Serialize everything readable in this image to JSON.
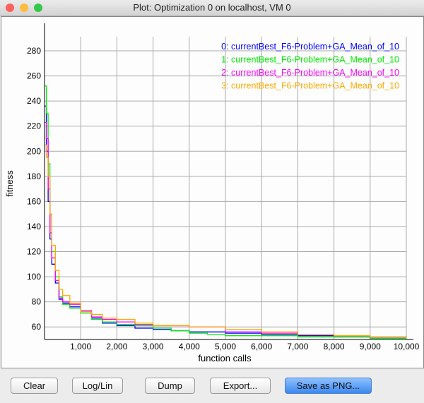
{
  "window": {
    "title": "Plot: Optimization 0  on localhost, VM 0"
  },
  "buttons": {
    "clear": "Clear",
    "loglin": "Log/Lin",
    "dump": "Dump",
    "export": "Export...",
    "save_png": "Save as PNG..."
  },
  "chart_data": {
    "type": "line",
    "xlabel": "function calls",
    "ylabel": "fitness",
    "xlim": [
      0,
      10000
    ],
    "ylim": [
      50,
      298
    ],
    "xticks": [
      "1,000",
      "2,000",
      "3,000",
      "4,000",
      "5,000",
      "6,000",
      "7,000",
      "8,000",
      "9,000",
      "10,000"
    ],
    "yticks": [
      "60",
      "80",
      "100",
      "120",
      "140",
      "160",
      "180",
      "200",
      "220",
      "240",
      "260",
      "280"
    ],
    "grid": true,
    "legend_position": "top-right",
    "series": [
      {
        "name": "0: currentBest_F6-Problem+GA_Mean_of_10",
        "color": "#0000ff",
        "x": [
          0,
          50,
          100,
          150,
          200,
          300,
          400,
          500,
          700,
          1000,
          1300,
          1600,
          2000,
          2500,
          3000,
          3500,
          4000,
          5000,
          6000,
          7000,
          8000,
          9000,
          10000
        ],
        "y": [
          236,
          200,
          160,
          130,
          110,
          95,
          82,
          79,
          76,
          72,
          67,
          63,
          61,
          59,
          58,
          57,
          56,
          55,
          54,
          53,
          52,
          51,
          51
        ]
      },
      {
        "name": "1: currentBest_F6-Problem+GA_Mean_of_10",
        "color": "#00ee00",
        "x": [
          0,
          50,
          100,
          150,
          200,
          300,
          400,
          500,
          700,
          1000,
          1300,
          1600,
          2000,
          2500,
          3000,
          3500,
          4000,
          4500,
          5000,
          6000,
          7000,
          8000,
          9000,
          10000
        ],
        "y": [
          252,
          230,
          190,
          150,
          120,
          100,
          84,
          78,
          75,
          71,
          66,
          64,
          62,
          61,
          59,
          57,
          55,
          54,
          53,
          53,
          52,
          52,
          51,
          51
        ]
      },
      {
        "name": "2: currentBest_F6-Problem+GA_Mean_of_10",
        "color": "#ff00ff",
        "x": [
          0,
          50,
          100,
          150,
          200,
          300,
          400,
          500,
          700,
          1000,
          1300,
          1600,
          2000,
          2500,
          3000,
          3500,
          4000,
          5000,
          6000,
          7000,
          8000,
          9000,
          10000
        ],
        "y": [
          223,
          210,
          170,
          135,
          115,
          97,
          83,
          80,
          78,
          73,
          68,
          66,
          64,
          62,
          61,
          61,
          60,
          56,
          55,
          54,
          53,
          52,
          52
        ]
      },
      {
        "name": "3: currentBest_F6-Problem+GA_Mean_of_10",
        "color": "#ffaa00",
        "x": [
          0,
          50,
          100,
          150,
          200,
          300,
          400,
          500,
          700,
          1000,
          1300,
          1600,
          2000,
          2500,
          3000,
          4000,
          5000,
          6000,
          7000,
          8000,
          9000,
          10000
        ],
        "y": [
          205,
          195,
          180,
          150,
          125,
          105,
          90,
          85,
          79,
          72,
          70,
          67,
          66,
          63,
          61,
          60,
          58,
          56,
          54,
          53,
          52,
          51
        ]
      }
    ]
  }
}
